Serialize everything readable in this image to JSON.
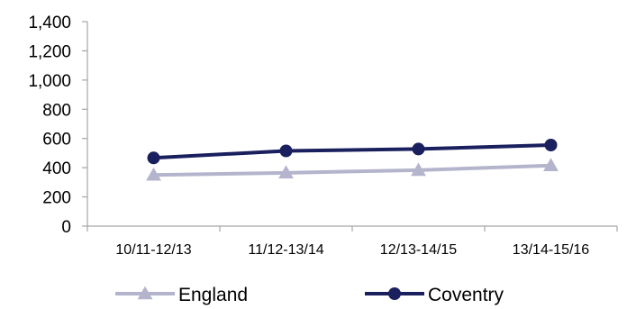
{
  "chart_data": {
    "type": "line",
    "categories": [
      "10/11-12/13",
      "11/12-13/14",
      "12/13-14/15",
      "13/14-15/16"
    ],
    "series": [
      {
        "name": "England",
        "values": [
          350,
          365,
          383,
          415
        ],
        "color": "#b4b4cc",
        "marker": "triangle"
      },
      {
        "name": "Coventry",
        "values": [
          467,
          515,
          528,
          555
        ],
        "color": "#1a1f5e",
        "marker": "circle"
      }
    ],
    "ylim": [
      0,
      1400
    ],
    "yticks": [
      0,
      200,
      400,
      600,
      800,
      1000,
      1200,
      1400
    ],
    "ytick_labels": [
      "0",
      "200",
      "400",
      "600",
      "800",
      "1,000",
      "1,200",
      "1,400"
    ],
    "grid": false,
    "legend_position": "bottom",
    "title": "",
    "xlabel": "",
    "ylabel": ""
  }
}
